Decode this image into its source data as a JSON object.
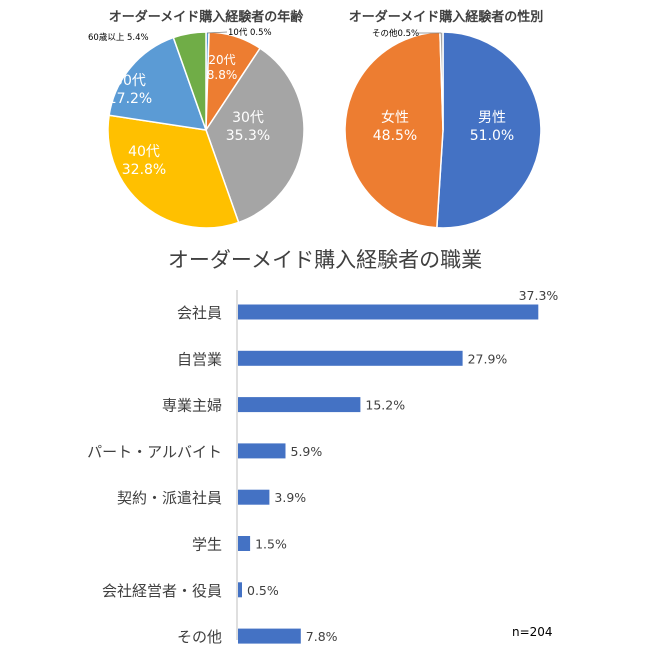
{
  "chart_data": [
    {
      "type": "pie",
      "title": "オーダーメイド購入経験者の年齢",
      "slices": [
        {
          "label": "10代",
          "value": 0.5,
          "display": "10代 0.5%",
          "color": "#5b9bd5",
          "text": "#000000"
        },
        {
          "label": "20代",
          "value": 8.8,
          "display": "20代\n8.8%",
          "color": "#ed7d31",
          "text": "#ffffff"
        },
        {
          "label": "30代",
          "value": 35.3,
          "display": "30代\n35.3%",
          "color": "#a5a5a5",
          "text": "#ffffff"
        },
        {
          "label": "40代",
          "value": 32.8,
          "display": "40代\n32.8%",
          "color": "#ffc000",
          "text": "#ffffff"
        },
        {
          "label": "50代",
          "value": 17.2,
          "display": "50代\n17.2%",
          "color": "#5b9bd5",
          "text": "#ffffff"
        },
        {
          "label": "60歳以上",
          "value": 5.4,
          "display": "60歳以上 5.4%",
          "color": "#70ad47",
          "text": "#000000"
        }
      ]
    },
    {
      "type": "pie",
      "title": "オーダーメイド購入経験者の性別",
      "slices": [
        {
          "label": "男性",
          "value": 51.0,
          "display": "男性\n51.0%",
          "color": "#4472c4",
          "text": "#ffffff"
        },
        {
          "label": "女性",
          "value": 48.5,
          "display": "女性\n48.5%",
          "color": "#ed7d31",
          "text": "#ffffff"
        },
        {
          "label": "その他",
          "value": 0.5,
          "display": "その他0.5%",
          "color": "#a5a5a5",
          "text": "#000000"
        }
      ]
    },
    {
      "type": "bar",
      "orientation": "horizontal",
      "title": "オーダーメイド購入経験者の職業",
      "categories": [
        "会社員",
        "自営業",
        "専業主婦",
        "パート・アルバイト",
        "契約・派遣社員",
        "学生",
        "会社経営者・役員",
        "その他"
      ],
      "values": [
        37.3,
        27.9,
        15.2,
        5.9,
        3.9,
        1.5,
        0.5,
        7.8
      ],
      "value_labels": [
        "37.3%",
        "27.9%",
        "15.2%",
        "5.9%",
        "3.9%",
        "1.5%",
        "0.5%",
        "7.8%"
      ],
      "color": "#4472c4",
      "xlim": [
        0,
        40
      ],
      "note": "n=204"
    }
  ]
}
